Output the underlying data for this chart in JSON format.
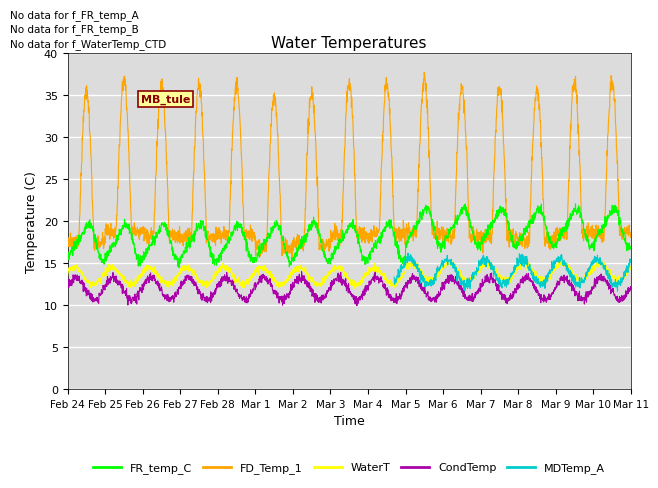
{
  "title": "Water Temperatures",
  "xlabel": "Time",
  "ylabel": "Temperature (C)",
  "ylim": [
    0,
    40
  ],
  "yticks": [
    0,
    5,
    10,
    15,
    20,
    25,
    30,
    35,
    40
  ],
  "annotations": [
    "No data for f_FR_temp_A",
    "No data for f_FR_temp_B",
    "No data for f_WaterTemp_CTD"
  ],
  "mb_tule_label": "MB_tule",
  "date_labels": [
    "Feb 24",
    "Feb 25",
    "Feb 26",
    "Feb 27",
    "Feb 28",
    "Mar 1",
    "Mar 2",
    "Mar 3",
    "Mar 4",
    "Mar 5",
    "Mar 6",
    "Mar 7",
    "Mar 8",
    "Mar 9",
    "Mar 10",
    "Mar 11"
  ],
  "series": {
    "FR_temp_C": {
      "color": "#00ff00",
      "label": "FR_temp_C"
    },
    "FD_Temp_1": {
      "color": "#ffa500",
      "label": "FD_Temp_1"
    },
    "WaterT": {
      "color": "#ffff00",
      "label": "WaterT"
    },
    "CondTemp": {
      "color": "#aa00aa",
      "label": "CondTemp"
    },
    "MDTemp_A": {
      "color": "#00cccc",
      "label": "MDTemp_A"
    }
  },
  "bg_color": "#dcdcdc",
  "fig_bg": "#ffffff",
  "n_days": 15,
  "points_per_day": 144
}
